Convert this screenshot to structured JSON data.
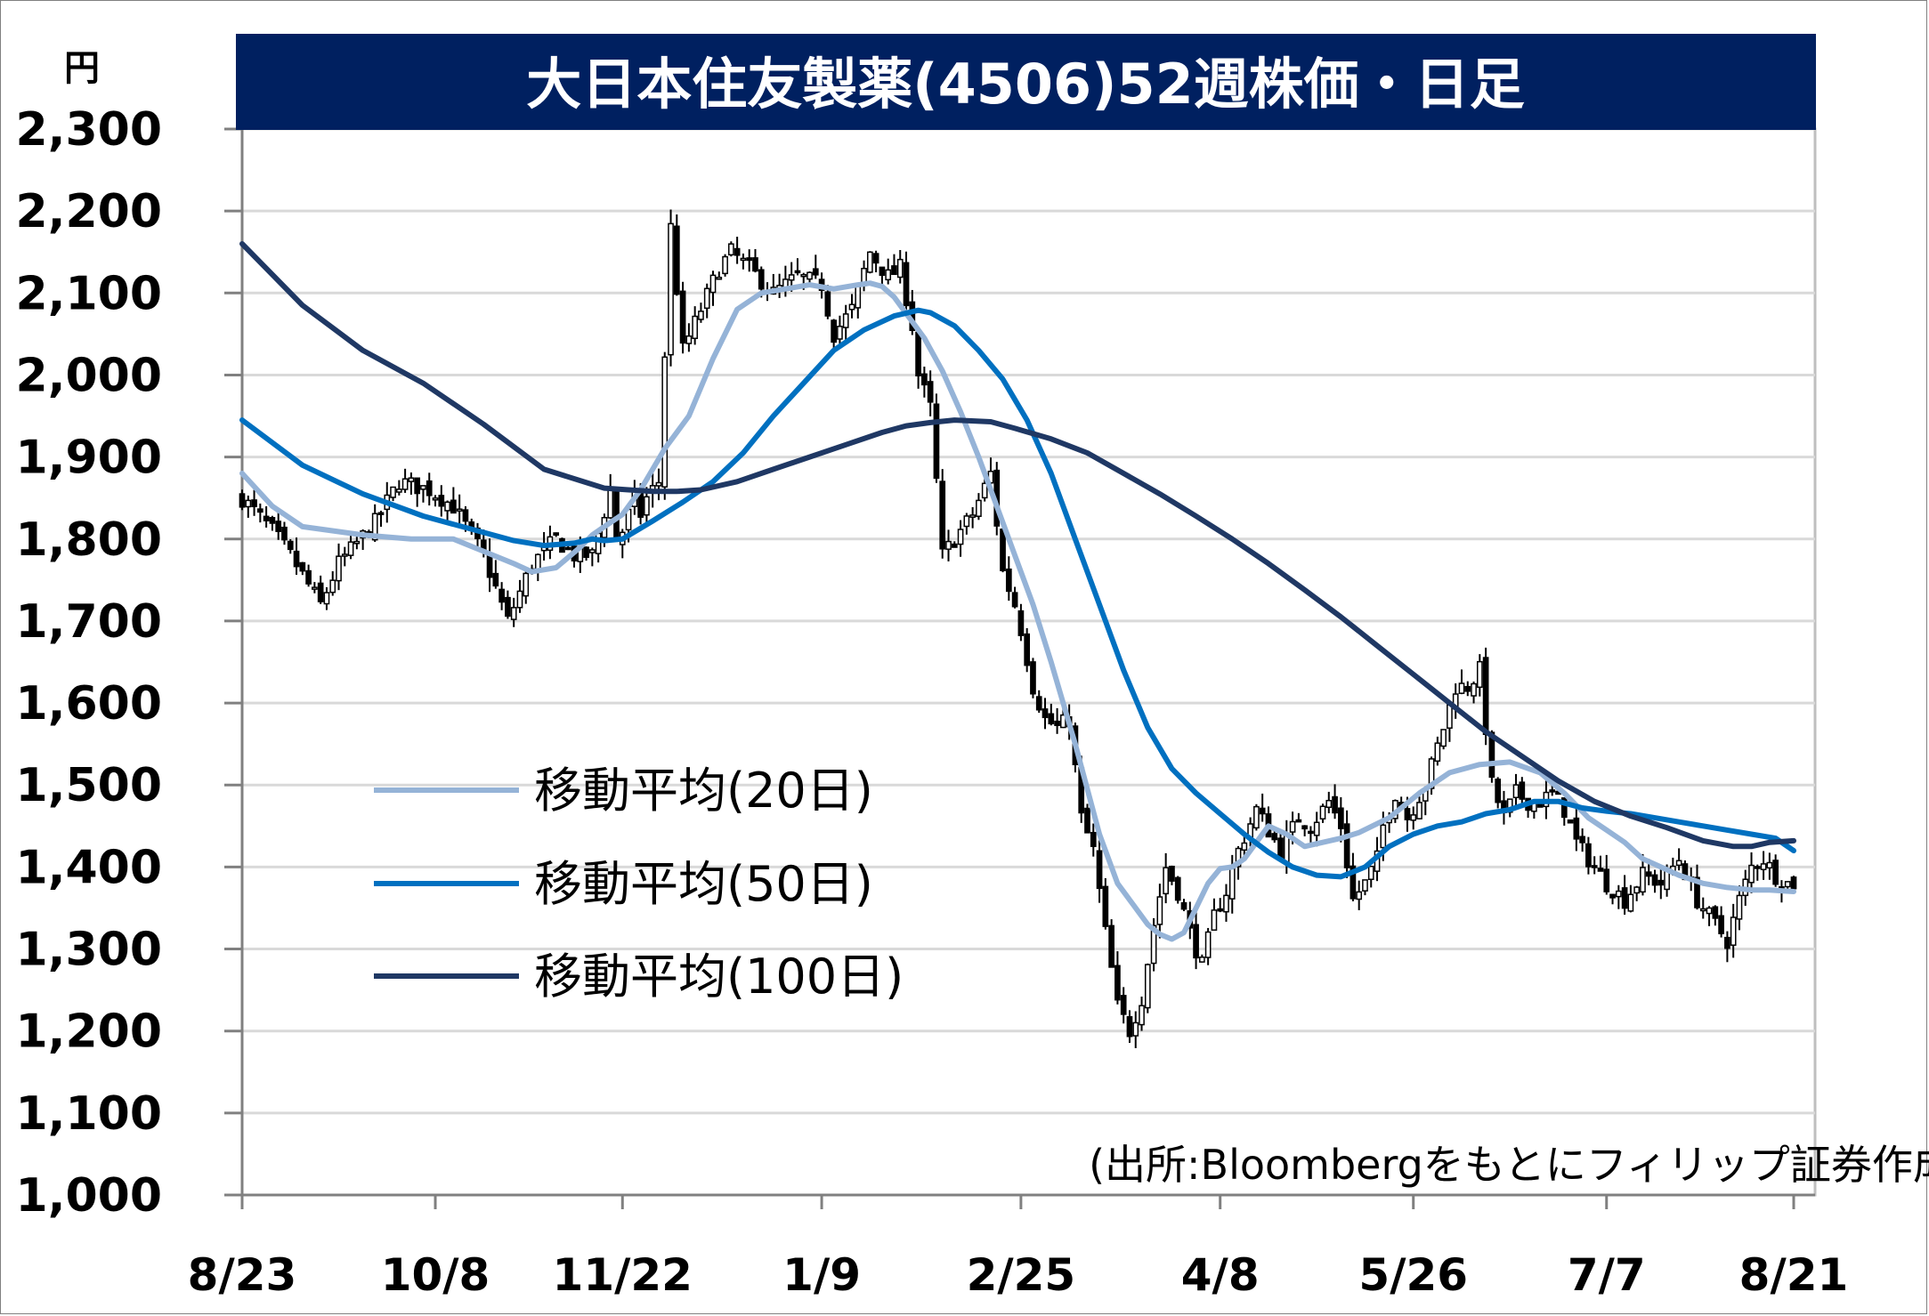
{
  "chart_data": {
    "type": "line",
    "title": "大日本住友製薬(4506)52週株価・日足",
    "unit": "円",
    "source": "(出所:Bloombergをもとにフィリップ証券作成)",
    "ylim": [
      1000,
      2300
    ],
    "yticks": [
      1000,
      1100,
      1200,
      1300,
      1400,
      1500,
      1600,
      1700,
      1800,
      1900,
      2000,
      2100,
      2200,
      2300
    ],
    "ytick_labels": [
      "1,000",
      "1,100",
      "1,200",
      "1,300",
      "1,400",
      "1,500",
      "1,600",
      "1,700",
      "1,800",
      "1,900",
      "2,000",
      "2,100",
      "2,200",
      "2,300"
    ],
    "x_labels": [
      "8/23",
      "10/8",
      "11/22",
      "1/9",
      "2/25",
      "4/8",
      "5/26",
      "7/7",
      "8/21"
    ],
    "x_label_pos": [
      0,
      32,
      63,
      96,
      129,
      162,
      194,
      226,
      257
    ],
    "x_count": 258,
    "grid": true,
    "legend_position": "center-left",
    "price": {
      "name": "",
      "anchors_x": [
        0,
        5,
        8,
        13,
        16,
        22,
        26,
        31,
        35,
        40,
        44,
        48,
        52,
        55,
        58,
        61,
        62,
        63,
        64,
        65,
        66,
        67,
        69,
        71,
        73,
        76,
        79,
        81,
        84,
        88,
        92,
        96,
        98,
        101,
        104,
        107,
        109,
        111,
        112,
        114,
        116,
        118,
        121,
        124,
        126,
        128,
        129,
        131,
        133,
        135,
        137,
        139,
        141,
        143,
        145,
        147,
        149,
        151,
        153,
        155,
        157,
        159,
        161,
        163,
        165,
        168,
        172,
        175,
        177,
        180,
        182,
        184,
        186,
        188,
        189,
        191,
        193,
        196,
        199,
        201,
        203,
        205,
        207,
        209,
        211,
        213,
        215,
        217,
        219,
        221,
        224,
        226,
        229,
        232,
        235,
        238,
        241,
        244,
        246,
        248,
        250,
        252,
        254,
        256,
        257
      ],
      "anchors_y": [
        1850,
        1810,
        1780,
        1720,
        1770,
        1820,
        1870,
        1860,
        1840,
        1780,
        1700,
        1770,
        1800,
        1780,
        1780,
        1860,
        1800,
        1810,
        1830,
        1850,
        1830,
        1850,
        1870,
        2180,
        2030,
        2080,
        2130,
        2150,
        2130,
        2100,
        2120,
        2110,
        2050,
        2080,
        2150,
        2120,
        2130,
        2060,
        2000,
        1960,
        1780,
        1800,
        1830,
        1880,
        1760,
        1720,
        1690,
        1620,
        1580,
        1570,
        1580,
        1460,
        1420,
        1320,
        1230,
        1200,
        1240,
        1330,
        1400,
        1370,
        1320,
        1280,
        1340,
        1370,
        1420,
        1470,
        1420,
        1460,
        1450,
        1480,
        1450,
        1360,
        1380,
        1410,
        1450,
        1490,
        1460,
        1500,
        1570,
        1620,
        1620,
        1640,
        1500,
        1460,
        1490,
        1480,
        1480,
        1490,
        1470,
        1430,
        1400,
        1380,
        1360,
        1390,
        1380,
        1410,
        1360,
        1330,
        1310,
        1360,
        1400,
        1410,
        1390,
        1380,
        1380
      ]
    },
    "series": [
      {
        "name": "移動平均(20日)",
        "color": "#95b3d7",
        "x": [
          0,
          5,
          10,
          20,
          28,
          35,
          40,
          45,
          48,
          52,
          56,
          58,
          60,
          63,
          66,
          70,
          74,
          78,
          82,
          86,
          90,
          94,
          98,
          102,
          104,
          106,
          108,
          110,
          113,
          116,
          119,
          122,
          125,
          128,
          131,
          134,
          138,
          142,
          145,
          148,
          150,
          152,
          154,
          156,
          158,
          160,
          162,
          164,
          166,
          168,
          170,
          173,
          176,
          179,
          182,
          185,
          190,
          195,
          200,
          205,
          210,
          215,
          219,
          223,
          226,
          229,
          232,
          235,
          238,
          242,
          246,
          250,
          253,
          257
        ],
        "y": [
          1880,
          1840,
          1815,
          1805,
          1800,
          1800,
          1785,
          1770,
          1760,
          1765,
          1790,
          1805,
          1815,
          1830,
          1860,
          1910,
          1950,
          2020,
          2080,
          2100,
          2105,
          2110,
          2105,
          2110,
          2112,
          2108,
          2095,
          2075,
          2045,
          2005,
          1955,
          1900,
          1840,
          1780,
          1720,
          1650,
          1550,
          1440,
          1380,
          1350,
          1330,
          1318,
          1312,
          1320,
          1350,
          1380,
          1398,
          1400,
          1410,
          1430,
          1450,
          1440,
          1425,
          1430,
          1435,
          1442,
          1460,
          1490,
          1515,
          1525,
          1528,
          1515,
          1490,
          1460,
          1445,
          1430,
          1410,
          1400,
          1390,
          1380,
          1375,
          1372,
          1372,
          1370
        ]
      },
      {
        "name": "移動平均(50日)",
        "color": "#0070c0",
        "x": [
          0,
          10,
          20,
          30,
          40,
          45,
          50,
          55,
          58,
          60,
          63,
          68,
          73,
          78,
          83,
          88,
          93,
          98,
          103,
          108,
          112,
          114,
          118,
          122,
          126,
          130,
          134,
          138,
          142,
          146,
          150,
          154,
          158,
          162,
          166,
          170,
          174,
          178,
          182,
          186,
          190,
          194,
          198,
          202,
          206,
          210,
          214,
          218,
          222,
          226,
          230,
          234,
          238,
          242,
          246,
          250,
          254,
          257
        ],
        "y": [
          1945,
          1890,
          1855,
          1828,
          1808,
          1798,
          1792,
          1795,
          1800,
          1798,
          1800,
          1822,
          1845,
          1870,
          1905,
          1950,
          1990,
          2030,
          2055,
          2072,
          2079,
          2076,
          2060,
          2030,
          1995,
          1945,
          1880,
          1800,
          1720,
          1640,
          1570,
          1520,
          1490,
          1465,
          1440,
          1418,
          1400,
          1390,
          1388,
          1400,
          1425,
          1440,
          1450,
          1455,
          1465,
          1470,
          1480,
          1480,
          1472,
          1468,
          1465,
          1460,
          1455,
          1450,
          1445,
          1440,
          1435,
          1420
        ]
      },
      {
        "name": "移動平均(100日)",
        "color": "#1f3864",
        "x": [
          0,
          10,
          20,
          30,
          40,
          50,
          60,
          64,
          68,
          72,
          76,
          82,
          88,
          94,
          100,
          106,
          110,
          114,
          118,
          124,
          128,
          134,
          140,
          146,
          152,
          158,
          164,
          170,
          176,
          182,
          188,
          194,
          200,
          206,
          212,
          218,
          224,
          230,
          236,
          242,
          247,
          250,
          253,
          257
        ],
        "y": [
          2160,
          2085,
          2030,
          1990,
          1940,
          1885,
          1862,
          1860,
          1858,
          1858,
          1860,
          1870,
          1885,
          1900,
          1915,
          1930,
          1938,
          1942,
          1945,
          1943,
          1935,
          1922,
          1905,
          1880,
          1855,
          1828,
          1800,
          1770,
          1738,
          1705,
          1670,
          1635,
          1600,
          1565,
          1535,
          1505,
          1480,
          1462,
          1448,
          1432,
          1425,
          1425,
          1430,
          1432
        ]
      }
    ]
  }
}
